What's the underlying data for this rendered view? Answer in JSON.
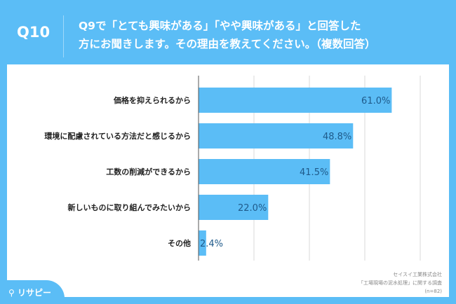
{
  "header": {
    "question_no": "Q10",
    "question": [
      "Q9で「とても興味がある」「やや興味がある」と回答した",
      "方にお聞きします。その理由を教えてください。（複数回答）"
    ]
  },
  "chart_data": {
    "type": "bar",
    "orientation": "horizontal",
    "categories": [
      "価格を抑えられるから",
      "環境に配慮されている方法だと感じるから",
      "工数の削減ができるから",
      "新しいものに取り組んでみたいから",
      "その他"
    ],
    "values": [
      61.0,
      48.8,
      41.5,
      22.0,
      2.4
    ],
    "labels": [
      "61.0%",
      "48.8%",
      "41.5%",
      "22.0%",
      "2.4%"
    ],
    "xlim": [
      0,
      70
    ],
    "grid": true,
    "unit": "%",
    "bar_color": "#5bbdf6",
    "label_color": "#1f5a8a"
  },
  "note": [
    "セイスイ工業株式会社",
    "「工場現場の泥水処理」に関する調査",
    "(n=82)"
  ],
  "logo": {
    "text": "リサピー"
  }
}
